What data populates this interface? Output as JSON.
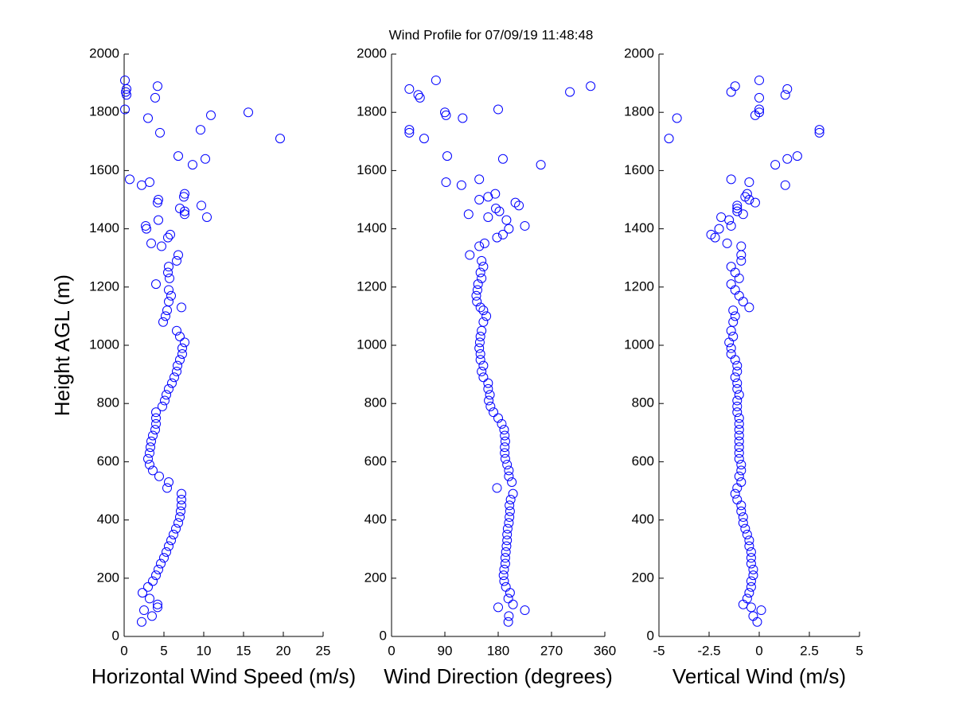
{
  "chart_data": [
    {
      "type": "scatter",
      "title": "Wind Profile for  07/09/19 11:48:48",
      "x_label": "Horizontal Wind Speed (m/s)",
      "y_label": "Height AGL (m)",
      "color": "#0000ff",
      "xlim": [
        0,
        25
      ],
      "xticks": [
        0,
        5,
        10,
        15,
        20,
        25
      ],
      "ylim": [
        0,
        2000
      ],
      "yticks": [
        0,
        200,
        400,
        600,
        800,
        1000,
        1200,
        1400,
        1600,
        1800,
        2000
      ],
      "x": [
        2.2,
        3.5,
        2.5,
        4.2,
        4.2,
        3.2,
        2.3,
        3.0,
        3.6,
        4.0,
        4.3,
        4.6,
        5.0,
        5.3,
        5.6,
        5.9,
        6.2,
        6.5,
        6.8,
        7.0,
        7.1,
        7.2,
        7.2,
        7.2,
        5.4,
        5.6,
        4.4,
        3.6,
        3.2,
        3.0,
        3.2,
        3.3,
        3.4,
        3.6,
        3.9,
        4.0,
        4.0,
        4.0,
        4.8,
        5.1,
        5.3,
        5.6,
        6.0,
        6.3,
        6.6,
        6.7,
        7.0,
        7.3,
        7.3,
        7.6,
        7.0,
        6.6,
        4.9,
        5.2,
        5.4,
        7.2,
        5.6,
        5.9,
        5.6,
        4.0,
        5.7,
        5.5,
        5.6,
        6.6,
        6.8,
        4.7,
        3.4,
        5.5,
        5.8,
        2.8,
        2.7,
        4.3,
        10.4,
        7.6,
        7.6,
        7.0,
        9.7,
        4.2,
        4.3,
        7.5,
        7.6,
        2.2,
        3.2,
        0.7,
        8.6,
        10.2,
        6.8,
        19.6,
        4.5,
        9.6,
        3.0,
        10.9,
        15.6,
        0.1,
        3.9,
        0.3,
        0.2,
        0.3,
        4.2,
        0.1
      ],
      "values": [
        50,
        70,
        90,
        100,
        110,
        130,
        150,
        170,
        190,
        210,
        230,
        250,
        270,
        290,
        310,
        330,
        350,
        370,
        390,
        410,
        430,
        450,
        470,
        490,
        510,
        530,
        550,
        570,
        590,
        610,
        630,
        650,
        670,
        690,
        710,
        730,
        750,
        770,
        790,
        810,
        830,
        850,
        870,
        890,
        910,
        930,
        950,
        970,
        990,
        1010,
        1030,
        1050,
        1080,
        1100,
        1120,
        1130,
        1150,
        1170,
        1190,
        1210,
        1230,
        1250,
        1270,
        1290,
        1310,
        1340,
        1350,
        1370,
        1380,
        1400,
        1410,
        1430,
        1440,
        1450,
        1460,
        1470,
        1480,
        1490,
        1500,
        1510,
        1520,
        1550,
        1560,
        1570,
        1620,
        1640,
        1650,
        1710,
        1730,
        1740,
        1780,
        1790,
        1800,
        1810,
        1850,
        1860,
        1870,
        1880,
        1890,
        1910
      ]
    },
    {
      "type": "scatter",
      "x_label": "Wind Direction (degrees)",
      "color": "#0000ff",
      "xlim": [
        0,
        360
      ],
      "xticks": [
        0,
        90,
        180,
        270,
        360
      ],
      "ylim": [
        0,
        2000
      ],
      "yticks": [
        0,
        200,
        400,
        600,
        800,
        1000,
        1200,
        1400,
        1600,
        1800,
        2000
      ],
      "x": [
        197,
        198,
        225,
        180,
        205,
        197,
        200,
        193,
        190,
        189,
        190,
        192,
        192,
        193,
        194,
        195,
        195,
        196,
        198,
        199,
        200,
        199,
        201,
        205,
        178,
        203,
        198,
        198,
        195,
        192,
        191,
        191,
        192,
        191,
        190,
        186,
        180,
        172,
        167,
        164,
        166,
        163,
        163,
        155,
        152,
        155,
        150,
        150,
        148,
        149,
        150,
        152,
        155,
        160,
        155,
        150,
        144,
        143,
        145,
        146,
        152,
        150,
        155,
        152,
        132,
        148,
        157,
        178,
        188,
        198,
        225,
        194,
        163,
        130,
        182,
        176,
        215,
        209,
        148,
        163,
        175,
        118,
        92,
        148,
        252,
        188,
        94,
        55,
        30,
        30,
        120,
        92,
        90,
        180,
        48,
        45,
        301,
        30,
        336,
        75
      ],
      "values": [
        50,
        70,
        90,
        100,
        110,
        130,
        150,
        170,
        190,
        210,
        230,
        250,
        270,
        290,
        310,
        330,
        350,
        370,
        390,
        410,
        430,
        450,
        470,
        490,
        510,
        530,
        550,
        570,
        590,
        610,
        630,
        650,
        670,
        690,
        710,
        730,
        750,
        770,
        790,
        810,
        830,
        850,
        870,
        890,
        910,
        930,
        950,
        970,
        990,
        1010,
        1030,
        1050,
        1080,
        1100,
        1120,
        1130,
        1150,
        1170,
        1190,
        1210,
        1230,
        1250,
        1270,
        1290,
        1310,
        1340,
        1350,
        1370,
        1380,
        1400,
        1410,
        1430,
        1440,
        1450,
        1460,
        1470,
        1480,
        1490,
        1500,
        1510,
        1520,
        1550,
        1560,
        1570,
        1620,
        1640,
        1650,
        1710,
        1730,
        1740,
        1780,
        1790,
        1800,
        1810,
        1850,
        1860,
        1870,
        1880,
        1890,
        1910
      ]
    },
    {
      "type": "scatter",
      "x_label": "Vertical Wind (m/s)",
      "color": "#0000ff",
      "xlim": [
        -5,
        5
      ],
      "xticks": [
        -5,
        -2.5,
        0,
        2.5,
        5
      ],
      "ylim": [
        0,
        2000
      ],
      "yticks": [
        0,
        200,
        400,
        600,
        800,
        1000,
        1200,
        1400,
        1600,
        1800,
        2000
      ],
      "x": [
        -0.1,
        -0.3,
        0.1,
        -0.4,
        -0.8,
        -0.6,
        -0.5,
        -0.4,
        -0.4,
        -0.3,
        -0.3,
        -0.4,
        -0.4,
        -0.4,
        -0.5,
        -0.5,
        -0.6,
        -0.7,
        -0.8,
        -0.8,
        -0.9,
        -0.9,
        -1.1,
        -1.2,
        -1.1,
        -0.9,
        -1.0,
        -0.9,
        -0.9,
        -1.0,
        -1.0,
        -1.0,
        -1.0,
        -1.0,
        -1.0,
        -1.0,
        -1.0,
        -1.1,
        -1.1,
        -1.1,
        -1.0,
        -1.1,
        -1.1,
        -1.2,
        -1.1,
        -1.1,
        -1.2,
        -1.4,
        -1.4,
        -1.5,
        -1.3,
        -1.4,
        -1.3,
        -1.2,
        -1.3,
        -0.5,
        -0.8,
        -1.0,
        -1.2,
        -1.4,
        -1.0,
        -1.2,
        -1.4,
        -0.9,
        -0.9,
        -0.9,
        -1.6,
        -2.2,
        -2.4,
        -2.0,
        -1.4,
        -1.5,
        -1.9,
        -0.8,
        -1.1,
        -1.1,
        -1.1,
        -0.2,
        -0.5,
        -0.7,
        -0.6,
        1.3,
        -0.5,
        -1.4,
        0.8,
        1.4,
        1.9,
        -4.5,
        3.0,
        3.0,
        -4.1,
        -0.2,
        0.0,
        0.0,
        0.0,
        1.3,
        -1.4,
        1.4,
        -1.2,
        0.0
      ],
      "values": [
        50,
        70,
        90,
        100,
        110,
        130,
        150,
        170,
        190,
        210,
        230,
        250,
        270,
        290,
        310,
        330,
        350,
        370,
        390,
        410,
        430,
        450,
        470,
        490,
        510,
        530,
        550,
        570,
        590,
        610,
        630,
        650,
        670,
        690,
        710,
        730,
        750,
        770,
        790,
        810,
        830,
        850,
        870,
        890,
        910,
        930,
        950,
        970,
        990,
        1010,
        1030,
        1050,
        1080,
        1100,
        1120,
        1130,
        1150,
        1170,
        1190,
        1210,
        1230,
        1250,
        1270,
        1290,
        1310,
        1340,
        1350,
        1370,
        1380,
        1400,
        1410,
        1430,
        1440,
        1450,
        1460,
        1470,
        1480,
        1490,
        1500,
        1510,
        1520,
        1550,
        1560,
        1570,
        1620,
        1640,
        1650,
        1710,
        1730,
        1740,
        1780,
        1790,
        1800,
        1810,
        1850,
        1860,
        1870,
        1880,
        1890,
        1910
      ]
    }
  ]
}
